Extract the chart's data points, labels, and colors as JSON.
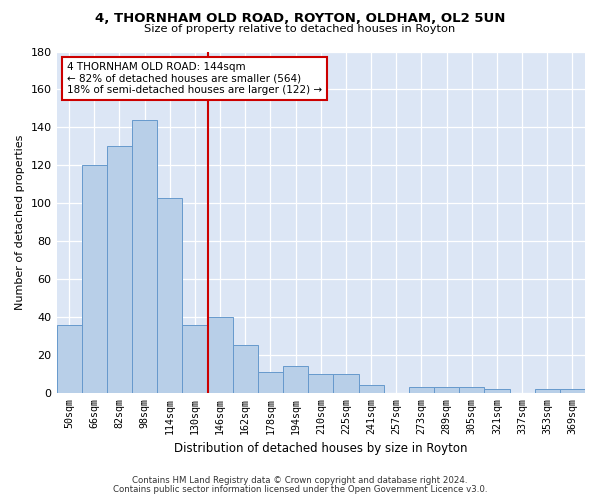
{
  "title_line1": "4, THORNHAM OLD ROAD, ROYTON, OLDHAM, OL2 5UN",
  "title_line2": "Size of property relative to detached houses in Royton",
  "xlabel": "Distribution of detached houses by size in Royton",
  "ylabel": "Number of detached properties",
  "categories": [
    "50sqm",
    "66sqm",
    "82sqm",
    "98sqm",
    "114sqm",
    "130sqm",
    "146sqm",
    "162sqm",
    "178sqm",
    "194sqm",
    "210sqm",
    "225sqm",
    "241sqm",
    "257sqm",
    "273sqm",
    "289sqm",
    "305sqm",
    "321sqm",
    "337sqm",
    "353sqm",
    "369sqm"
  ],
  "values": [
    36,
    120,
    130,
    144,
    103,
    36,
    40,
    25,
    11,
    14,
    10,
    10,
    4,
    0,
    3,
    3,
    3,
    2,
    0,
    2,
    2
  ],
  "bar_color": "#b8cfe8",
  "bar_edge_color": "#6699cc",
  "vline_color": "#cc0000",
  "annotation_box_color": "#cc0000",
  "ylim": [
    0,
    180
  ],
  "yticks": [
    0,
    20,
    40,
    60,
    80,
    100,
    120,
    140,
    160,
    180
  ],
  "footnote1": "Contains HM Land Registry data © Crown copyright and database right 2024.",
  "footnote2": "Contains public sector information licensed under the Open Government Licence v3.0.",
  "fig_bg_color": "#ffffff",
  "plot_bg_color": "#dce6f5"
}
